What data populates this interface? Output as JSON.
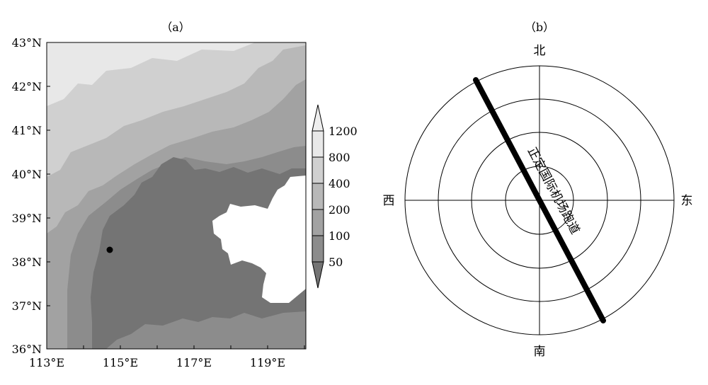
{
  "panel_a": {
    "label": "（a）",
    "lat_labels": [
      "43°N",
      "42°N",
      "41°N",
      "40°N",
      "39°N",
      "38°N",
      "37°N",
      "36°N"
    ],
    "lon_labels": [
      "113°E",
      "115°E",
      "117°E",
      "119°E"
    ],
    "colorbar": {
      "labels": [
        "1200",
        "800",
        "400",
        "200",
        "100",
        "50"
      ],
      "colors": [
        "#e8e8e8",
        "#d0d0d0",
        "#b8b8b8",
        "#a2a2a2",
        "#8c8c8c",
        "#747474"
      ]
    },
    "terrain_colors": {
      "plain": "#747474",
      "low_hills": "#8c8c8c",
      "foothills": "#a2a2a2",
      "mountains": "#b8b8b8",
      "high_mountains": "#d0d0d0",
      "plateau": "#e8e8e8",
      "sea": "#ffffff"
    },
    "marker_color": "#000000"
  },
  "panel_b": {
    "label": "（b）",
    "north": "北",
    "south": "南",
    "east": "东",
    "west": "西",
    "runway_label": "正定国际机场跑道"
  }
}
